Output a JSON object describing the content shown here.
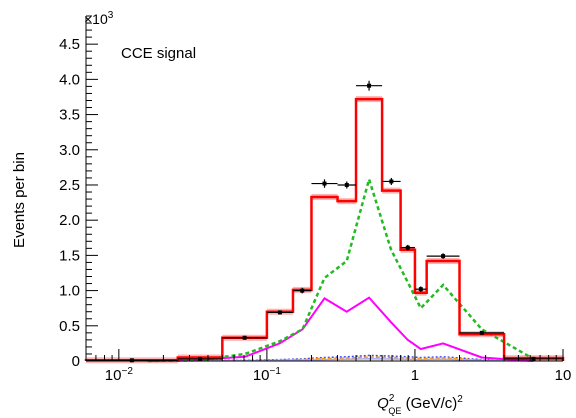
{
  "chart_data": {
    "type": "line",
    "annotation": "CCE signal",
    "ylabel": "Events per bin",
    "xlabel": {
      "symbol": "Q",
      "superscript": "2",
      "subscript": "QE",
      "unit": "(GeV/c)",
      "unit_superscript": "2"
    },
    "y_multiplier": {
      "base": "×10",
      "exponent": "3"
    },
    "x_scale": "log",
    "xlim": [
      0.006,
      10
    ],
    "ylim": [
      0,
      4.9
    ],
    "x_ticks": [
      {
        "value": 0.01,
        "base": "10",
        "exponent": "−2"
      },
      {
        "value": 0.1,
        "base": "10",
        "exponent": "−1"
      },
      {
        "value": 1,
        "label": "1"
      },
      {
        "value": 10,
        "label": "10"
      }
    ],
    "y_ticks": [
      {
        "value": 0,
        "label": "0"
      },
      {
        "value": 0.5,
        "label": "0.5"
      },
      {
        "value": 1.0,
        "label": "1.0"
      },
      {
        "value": 1.5,
        "label": "1.5"
      },
      {
        "value": 2.0,
        "label": "2.0"
      },
      {
        "value": 2.5,
        "label": "2.5"
      },
      {
        "value": 3.0,
        "label": "3.0"
      },
      {
        "value": 3.5,
        "label": "3.5"
      },
      {
        "value": 4.0,
        "label": "4.0"
      },
      {
        "value": 4.5,
        "label": "4.5"
      }
    ],
    "bin_edges": [
      0.006,
      0.025,
      0.05,
      0.1,
      0.15,
      0.2,
      0.3,
      0.4,
      0.6,
      0.8,
      1.0,
      1.2,
      2.0,
      4.0,
      10.0
    ],
    "colors": {
      "total": "#ff0000",
      "total_band": "#ff8080",
      "dashed": "#22bb22",
      "magenta": "#ff00ff",
      "data": "#000000",
      "minor_a": "#4444ff",
      "minor_b": "#ff9900",
      "minor_c": "#aaaaee"
    },
    "series": [
      {
        "kind": "step_band",
        "values": [
          0.01,
          0.05,
          0.33,
          0.7,
          1.01,
          2.33,
          2.27,
          3.72,
          2.42,
          1.58,
          0.97,
          1.42,
          0.38,
          0.04
        ]
      },
      {
        "kind": "points",
        "values": [
          0.01,
          0.03,
          0.33,
          0.69,
          1.0,
          2.52,
          2.5,
          3.91,
          2.55,
          1.61,
          1.02,
          1.49,
          0.4,
          0.03
        ],
        "errors": [
          0.005,
          0.01,
          0.02,
          0.03,
          0.04,
          0.06,
          0.05,
          0.07,
          0.05,
          0.04,
          0.04,
          0.04,
          0.02,
          0.01
        ]
      },
      {
        "kind": "dashed",
        "x": [
          0.0157,
          0.035,
          0.071,
          0.122,
          0.174,
          0.245,
          0.346,
          0.49,
          0.69,
          0.894,
          1.095,
          1.55,
          2.83,
          6.32
        ],
        "values": [
          0.0,
          0.01,
          0.1,
          0.28,
          0.45,
          1.18,
          1.42,
          2.58,
          1.58,
          1.12,
          0.75,
          1.08,
          0.45,
          0.03
        ]
      },
      {
        "kind": "magenta",
        "x": [
          0.0157,
          0.035,
          0.071,
          0.122,
          0.174,
          0.245,
          0.346,
          0.49,
          0.69,
          0.894,
          1.095,
          1.55,
          2.83,
          6.32
        ],
        "values": [
          0.0,
          0.02,
          0.06,
          0.25,
          0.45,
          0.89,
          0.7,
          0.9,
          0.55,
          0.3,
          0.17,
          0.25,
          0.05,
          0.0
        ]
      },
      {
        "kind": "minor",
        "x": [
          0.0157,
          0.035,
          0.071,
          0.122,
          0.174,
          0.245,
          0.346,
          0.49,
          0.69,
          0.894,
          1.095,
          1.55,
          2.83,
          6.32
        ],
        "values": [
          0.0,
          0.005,
          0.01,
          0.02,
          0.03,
          0.05,
          0.06,
          0.08,
          0.07,
          0.06,
          0.05,
          0.06,
          0.02,
          0.0
        ]
      }
    ]
  }
}
